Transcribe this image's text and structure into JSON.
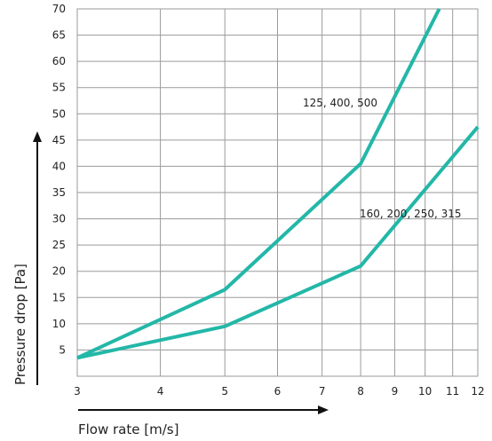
{
  "chart_data": {
    "type": "line",
    "xlabel": "Flow rate [m/s]",
    "ylabel": "Pressure drop [Pa]",
    "x_ticks": [
      3,
      4,
      5,
      6,
      7,
      8,
      9,
      10,
      11,
      12
    ],
    "y_ticks": [
      5,
      10,
      15,
      20,
      25,
      30,
      35,
      40,
      45,
      50,
      55,
      60,
      65,
      70
    ],
    "x_scale": "log",
    "xlim": [
      3,
      12
    ],
    "ylim": [
      0,
      70
    ],
    "grid": true,
    "legend": "none",
    "series": [
      {
        "name": "125, 400, 500",
        "x": [
          3,
          5,
          8,
          10.5
        ],
        "y": [
          3.5,
          16.5,
          40.5,
          70
        ],
        "color": "#23b7a8"
      },
      {
        "name": "160, 200, 250, 315",
        "x": [
          3,
          5,
          8,
          12
        ],
        "y": [
          3.5,
          9.5,
          21,
          47.5
        ],
        "color": "#23b7a8"
      }
    ]
  }
}
